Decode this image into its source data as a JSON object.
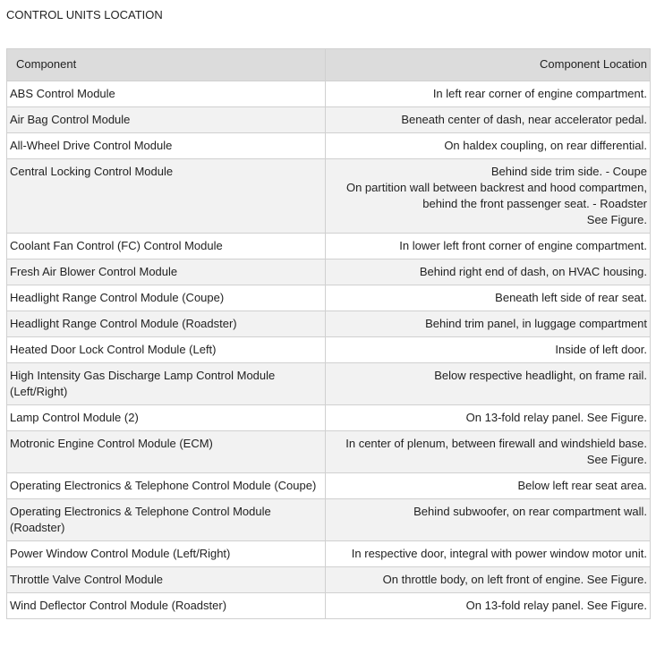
{
  "header": {
    "title": "CONTROL UNITS LOCATION"
  },
  "table": {
    "columns": [
      "Component",
      "Component Location"
    ],
    "rows": [
      [
        "ABS Control Module",
        "In left rear corner of engine compartment."
      ],
      [
        "Air Bag Control Module",
        "Beneath center of dash, near accelerator pedal."
      ],
      [
        "All-Wheel Drive Control Module",
        "On haldex coupling, on rear differential."
      ],
      [
        "Central Locking Control Module",
        [
          "Behind side trim side. - Coupe",
          "On partition wall between backrest and hood compartmen, behind the front passenger seat. - Roadster",
          "See Figure."
        ]
      ],
      [
        "Coolant Fan Control (FC) Control Module",
        "In lower left front corner of engine compartment."
      ],
      [
        "Fresh Air Blower Control Module",
        "Behind right end of dash, on HVAC housing."
      ],
      [
        "Headlight Range Control Module (Coupe)",
        "Beneath left side of rear seat."
      ],
      [
        "Headlight Range Control Module (Roadster)",
        "Behind trim panel, in luggage compartment"
      ],
      [
        "Heated Door Lock Control Module (Left)",
        "Inside of left door."
      ],
      [
        "High Intensity Gas Discharge Lamp Control Module (Left/Right)",
        "Below respective headlight, on frame rail."
      ],
      [
        "Lamp Control Module (2)",
        "On 13-fold relay panel. See Figure."
      ],
      [
        "Motronic Engine Control Module (ECM)",
        "In center of plenum, between firewall and windshield base. See Figure."
      ],
      [
        "Operating Electronics & Telephone Control Module (Coupe)",
        "Below left rear seat area."
      ],
      [
        "Operating Electronics & Telephone Control Module (Roadster)",
        "Behind subwoofer, on rear compartment wall."
      ],
      [
        "Power Window Control Module (Left/Right)",
        "In respective door, integral with power window motor unit."
      ],
      [
        "Throttle Valve Control Module",
        "On throttle body, on left front of engine. See Figure."
      ],
      [
        "Wind Deflector Control Module (Roadster)",
        "On 13-fold relay panel. See Figure."
      ]
    ]
  }
}
